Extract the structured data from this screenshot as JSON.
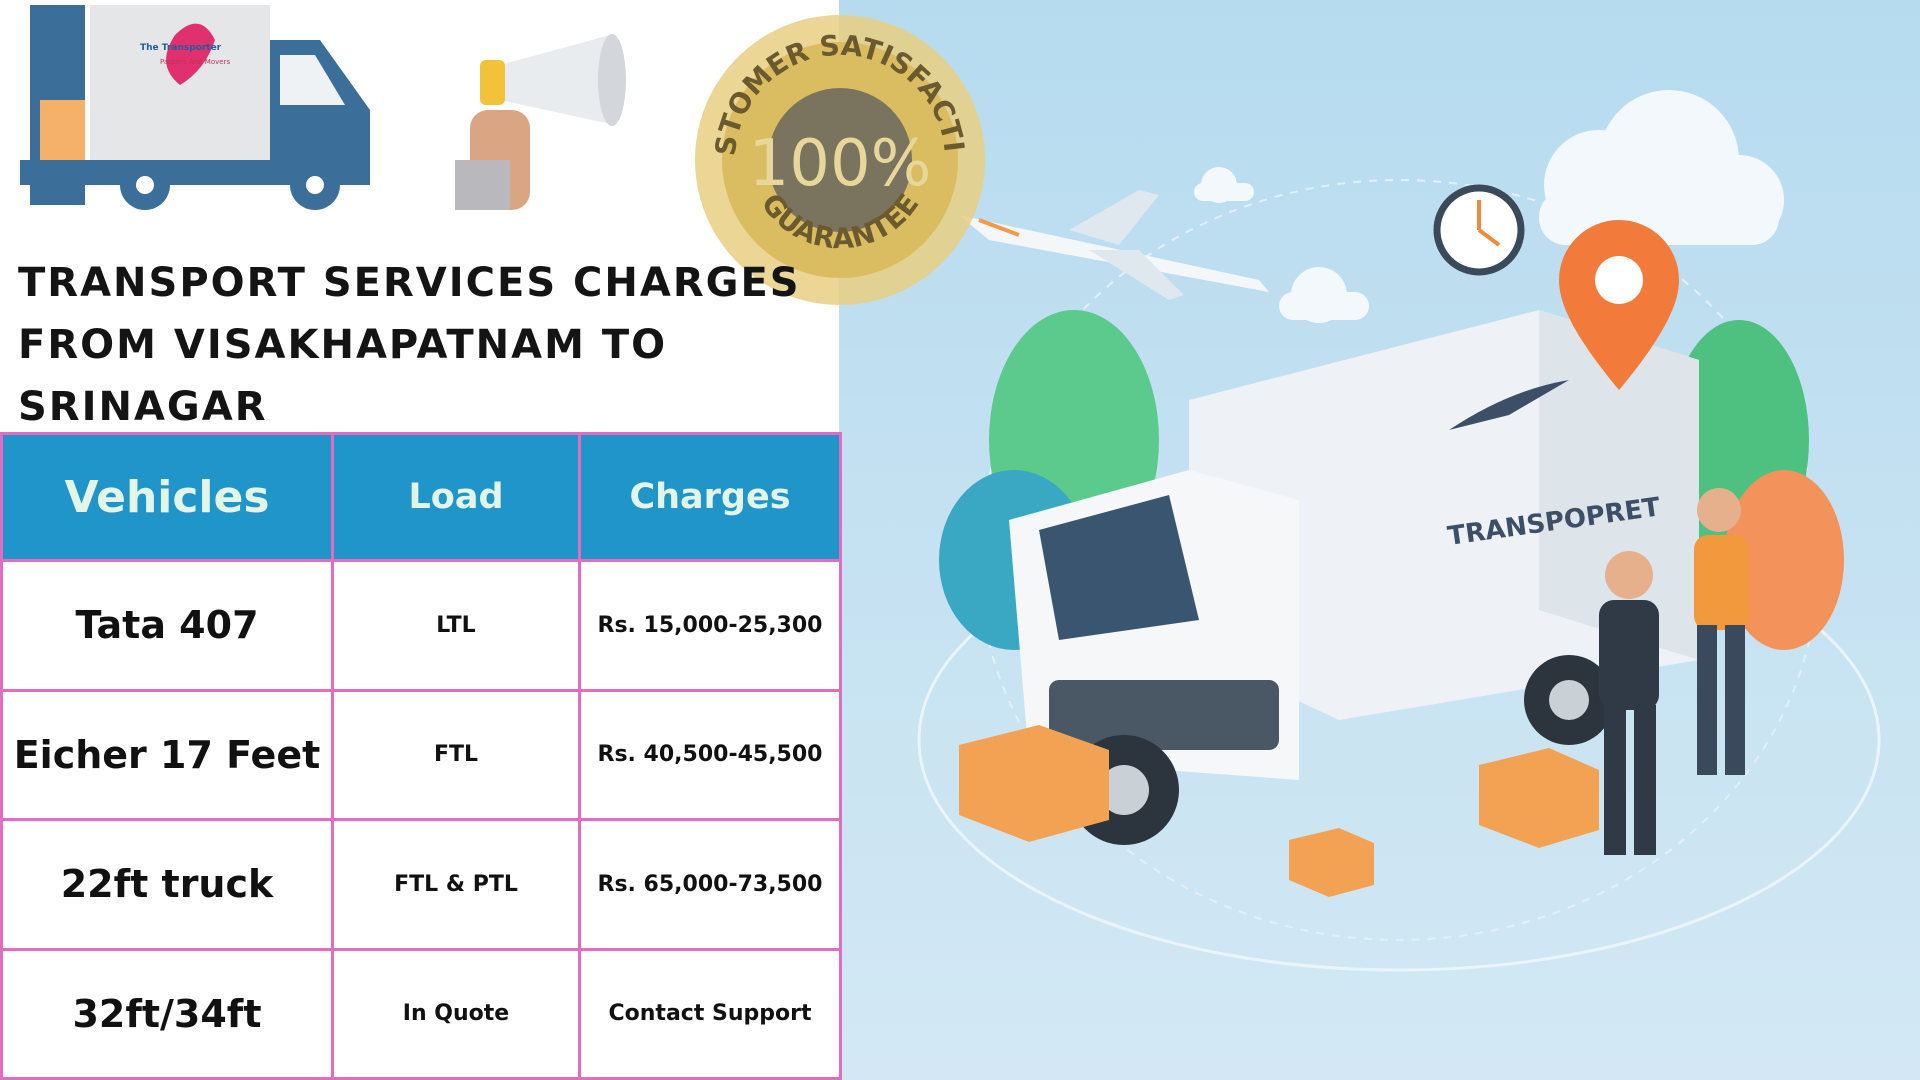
{
  "logo": {
    "name": "The Transporter",
    "subtitle": "Packers And Movers"
  },
  "badge": {
    "top": "CUSTOMER SATISFACTION",
    "center": "100%",
    "bottom": "GUARANTEE"
  },
  "title": "TRANSPORT SERVICES CHARGES FROM VISAKHAPATNAM TO SRINAGAR",
  "table": {
    "headers": [
      "Vehicles",
      "Load",
      "Charges"
    ],
    "rows": [
      [
        "Tata 407",
        "LTL",
        "Rs. 15,000-25,300"
      ],
      [
        "Eicher 17 Feet",
        "FTL",
        "Rs. 40,500-45,500"
      ],
      [
        "22ft truck",
        "FTL & PTL",
        "Rs. 65,000-73,500"
      ],
      [
        "32ft/34ft",
        "In Quote",
        "Contact Support"
      ]
    ]
  },
  "illustration": {
    "brand": "TRANSPOPRET"
  }
}
